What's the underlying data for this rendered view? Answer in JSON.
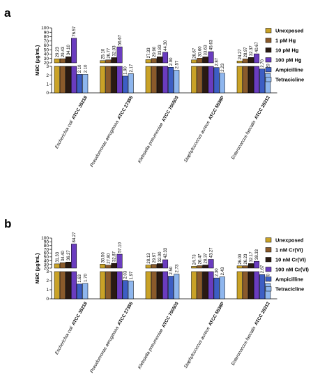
{
  "panels": [
    {
      "label": "a",
      "ylabel": "MBC (μg/mL)",
      "chart_data": {
        "type": "bar",
        "broken_axis": true,
        "ylim_lower": [
          0,
          3
        ],
        "ylim_upper": [
          20,
          100
        ],
        "yticks_lower": [
          0,
          1,
          2,
          3
        ],
        "yticks_upper": [
          20,
          30,
          40,
          50,
          60,
          70,
          80,
          90,
          100
        ],
        "categories": [
          {
            "species": "Escherichia coli",
            "strain": "ATCC 35218"
          },
          {
            "species": "Pseudomonas aeruginosa",
            "strain": "ATCC 27355"
          },
          {
            "species": "Klebsiella pneumoniae",
            "strain": "ATCC 700503"
          },
          {
            "species": "Staphylococcus aureus",
            "strain": "ATCC 5538P"
          },
          {
            "species": "Enterococcus faecalis",
            "strain": "ATCC 29212"
          }
        ],
        "legend_position": "right",
        "series": [
          {
            "name": "Unexposed",
            "color": "#c9a227",
            "values": [
              29.23,
              25.1,
              27.33,
              26.67,
              24.27
            ],
            "labels": [
              "29.23",
              "25.10",
              "27.33",
              "26.67",
              "24.27"
            ]
          },
          {
            "name": "1 pM Hg",
            "color": "#8a5a2b",
            "values": [
              29.43,
              26.77,
              29.9,
              30.6,
              28.97
            ],
            "labels": [
              "29.43",
              "26.77",
              "29.90",
              "30.60",
              "28.97"
            ]
          },
          {
            "name": "10 pM Hg",
            "color": "#2a1a12",
            "values": [
              34.1,
              32.03,
              33.83,
              33.63,
              32.37
            ],
            "labels": [
              "34.10",
              "32.03",
              "33.83",
              "33.63",
              "32.37"
            ]
          },
          {
            "name": "100 pM Hg",
            "color": "#6a3cbf",
            "values": [
              76.57,
              56.67,
              44.3,
              45.63,
              40.67
            ],
            "labels": [
              "76.57",
              "56.67",
              "44.30",
              "45.63",
              "40.67"
            ]
          },
          {
            "name": "Ampicilline",
            "color": "#3d5ec4",
            "values": [
              2.1,
              1.9,
              2.9,
              2.87,
              2.7
            ],
            "labels": [
              "2.10",
              "1.90",
              "2.90",
              "2.87",
              "2.70"
            ]
          },
          {
            "name": "Tetracicline",
            "color": "#8eb6ee",
            "values": [
              2.1,
              2.17,
              2.57,
              2.23,
              2.2
            ],
            "labels": [
              "2.10",
              "2.17",
              "2.57",
              "2.23",
              "2.20"
            ]
          }
        ]
      }
    },
    {
      "label": "b",
      "ylabel": "MBC (μg/mL)",
      "chart_data": {
        "type": "bar",
        "broken_axis": true,
        "ylim_lower": [
          0,
          3
        ],
        "ylim_upper": [
          20,
          100
        ],
        "yticks_lower": [
          0,
          1,
          2,
          3
        ],
        "yticks_upper": [
          20,
          30,
          40,
          50,
          60,
          70,
          80,
          90,
          100
        ],
        "categories": [
          {
            "species": "Escherichia coli",
            "strain": "ATCC 35218"
          },
          {
            "species": "Pseudomonas aeruginosa",
            "strain": "ATCC 27355"
          },
          {
            "species": "Klebsiella pneumoniae",
            "strain": "ATCC 700503"
          },
          {
            "species": "Staphylococcus aureus",
            "strain": "ATCC 5538P"
          },
          {
            "species": "Enterococcus faecalis",
            "strain": "ATCC 29212"
          }
        ],
        "legend_position": "right",
        "series": [
          {
            "name": "Unexposed",
            "color": "#c9a227",
            "values": [
              31.33,
              30.5,
              28.13,
              24.73,
              26.0
            ],
            "labels": [
              "31.33",
              "30.50",
              "28.13",
              "24.73",
              "26.00"
            ]
          },
          {
            "name": "1 nM Cr(VI)",
            "color": "#8a5a2b",
            "values": [
              34.4,
              27.8,
              29.97,
              26.47,
              26.23
            ],
            "labels": [
              "34.40",
              "27.80",
              "29.97",
              "26.47",
              "26.23"
            ]
          },
          {
            "name": "10 nM Cr(VI)",
            "color": "#2a1a12",
            "values": [
              36.27,
              32.87,
              32.0,
              28.37,
              32.17
            ],
            "labels": [
              "36.27",
              "32.87",
              "32.00",
              "28.37",
              "32.17"
            ]
          },
          {
            "name": "100 nM Cr(VI)",
            "color": "#6a3cbf",
            "values": [
              84.27,
              57.1,
              42.33,
              43.27,
              38.33
            ],
            "labels": [
              "84.27",
              "57.10",
              "42.33",
              "43.27",
              "38.33"
            ]
          },
          {
            "name": "Ampicilline",
            "color": "#3d5ec4",
            "values": [
              1.63,
              2.03,
              2.5,
              2.3,
              2.67
            ],
            "labels": [
              "1.63",
              "2.03",
              "2.50",
              "2.30",
              "2.67"
            ]
          },
          {
            "name": "Tetracicline",
            "color": "#8eb6ee",
            "values": [
              1.7,
              1.97,
              2.73,
              2.43,
              1.7
            ],
            "labels": [
              "1.70",
              "1.97",
              "2.73",
              "2.43",
              "1.70"
            ]
          }
        ]
      }
    }
  ]
}
